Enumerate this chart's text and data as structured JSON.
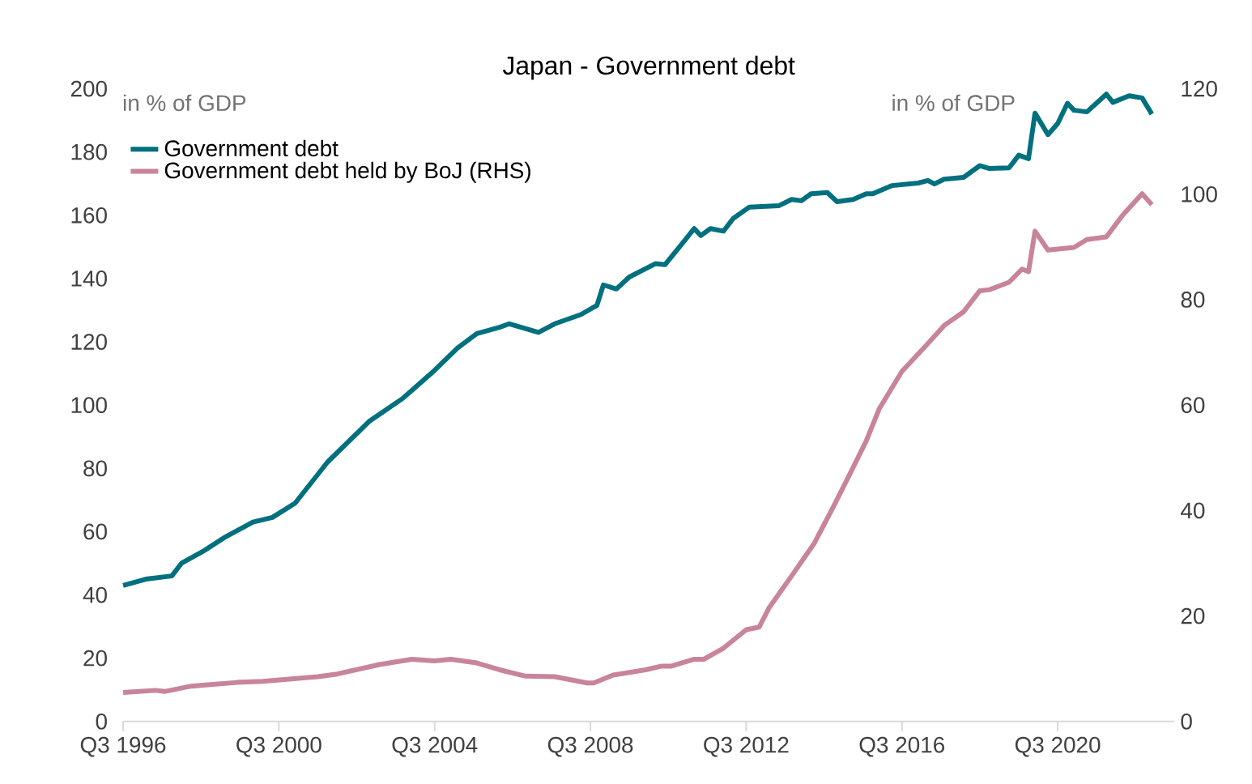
{
  "chart_data": {
    "type": "line",
    "title": "Japan - Government debt",
    "ylabel": "in % of GDP",
    "y2label": "in % of GDP",
    "xlim": [
      "1996-07",
      "2023-07"
    ],
    "xticks": [
      {
        "value": "1996-07",
        "label": "Q3 1996"
      },
      {
        "value": "2000-07",
        "label": "Q3 2000"
      },
      {
        "value": "2004-07",
        "label": "Q3 2004"
      },
      {
        "value": "2008-07",
        "label": "Q3 2008"
      },
      {
        "value": "2012-07",
        "label": "Q3 2012"
      },
      {
        "value": "2016-07",
        "label": "Q3 2016"
      },
      {
        "value": "2020-07",
        "label": "Q3 2020"
      }
    ],
    "ylim": [
      0,
      200
    ],
    "yticks": [
      0,
      20,
      40,
      60,
      80,
      100,
      120,
      140,
      160,
      180,
      200
    ],
    "y2lim": [
      0,
      120
    ],
    "y2ticks": [
      0,
      20,
      40,
      60,
      80,
      100,
      120
    ],
    "legend": "top left",
    "series": [
      {
        "name": "Government debt",
        "color": "#00707f",
        "x": [
          "1996-07",
          "1997-02",
          "1997-10",
          "1998-01",
          "1998-08",
          "1999-02",
          "1999-11",
          "2000-05",
          "2000-12",
          "2001-10",
          "2002-11",
          "2003-09",
          "2004-07",
          "2005-02",
          "2005-08",
          "2006-03",
          "2006-06",
          "2007-03",
          "2007-08",
          "2008-04",
          "2008-09",
          "2008-11",
          "2009-03",
          "2009-07",
          "2010-03",
          "2010-06",
          "2010-11",
          "2011-03",
          "2011-05",
          "2011-08",
          "2011-12",
          "2012-03",
          "2012-08",
          "2013-05",
          "2013-09",
          "2013-12",
          "2014-03",
          "2014-08",
          "2014-11",
          "2015-04",
          "2015-08",
          "2015-10",
          "2016-04",
          "2016-12",
          "2017-03",
          "2017-05",
          "2017-08",
          "2018-02",
          "2018-07",
          "2018-10",
          "2019-04",
          "2019-07",
          "2019-10",
          "2019-12",
          "2020-04",
          "2020-07",
          "2020-10",
          "2020-12",
          "2021-04",
          "2021-10",
          "2021-12",
          "2022-05",
          "2022-09",
          "2022-12"
        ],
        "values": [
          43,
          45,
          46,
          50,
          54,
          58,
          63,
          64.5,
          69,
          82,
          95,
          102,
          111,
          118,
          122.6,
          124.6,
          125.7,
          123,
          125.7,
          128.6,
          131.5,
          138,
          136.7,
          140.5,
          144.7,
          144.4,
          150.7,
          155.8,
          153.6,
          155.8,
          155,
          159,
          162.6,
          163,
          165,
          164.6,
          166.8,
          167.2,
          164.3,
          165,
          166.8,
          166.8,
          169.4,
          170.2,
          171,
          169.9,
          171.4,
          172,
          175.7,
          174.8,
          175,
          179,
          177.9,
          192.3,
          185.5,
          189,
          195.4,
          193.2,
          192.7,
          198.3,
          195.7,
          197.8,
          197.1,
          192
        ]
      },
      {
        "name": "Government debt held by BoJ (RHS)",
        "color": "#c8849a",
        "axis": "y2",
        "x": [
          "1996-07",
          "1997-05",
          "1997-08",
          "1998-04",
          "1999-06",
          "2000-02",
          "2001-07",
          "2002-01",
          "2003-02",
          "2003-12",
          "2004-07",
          "2004-12",
          "2005-08",
          "2006-03",
          "2006-11",
          "2007-08",
          "2008-06",
          "2008-08",
          "2009-02",
          "2009-12",
          "2010-05",
          "2010-08",
          "2011-03",
          "2011-06",
          "2011-12",
          "2012-07",
          "2012-11",
          "2013-02",
          "2013-09",
          "2014-04",
          "2014-10",
          "2015-03",
          "2015-08",
          "2015-12",
          "2016-07",
          "2017-02",
          "2017-08",
          "2018-02",
          "2018-07",
          "2018-10",
          "2019-04",
          "2019-08",
          "2019-10",
          "2019-12",
          "2020-04",
          "2020-12",
          "2021-04",
          "2021-10",
          "2022-03",
          "2022-09",
          "2022-12"
        ],
        "values": [
          5.5,
          5.9,
          5.7,
          6.7,
          7.4,
          7.6,
          8.5,
          9.0,
          10.8,
          11.8,
          11.5,
          11.8,
          11.1,
          9.8,
          8.6,
          8.5,
          7.3,
          7.3,
          8.8,
          9.8,
          10.5,
          10.5,
          11.8,
          11.8,
          13.9,
          17.4,
          17.9,
          21.5,
          27.6,
          33.8,
          40.9,
          47.0,
          53.2,
          59.3,
          66.4,
          71.0,
          75.1,
          77.7,
          81.7,
          81.9,
          83.3,
          85.8,
          85.3,
          93.0,
          89.4,
          89.9,
          91.4,
          91.9,
          96.0,
          100.1,
          98.0
        ]
      }
    ]
  }
}
